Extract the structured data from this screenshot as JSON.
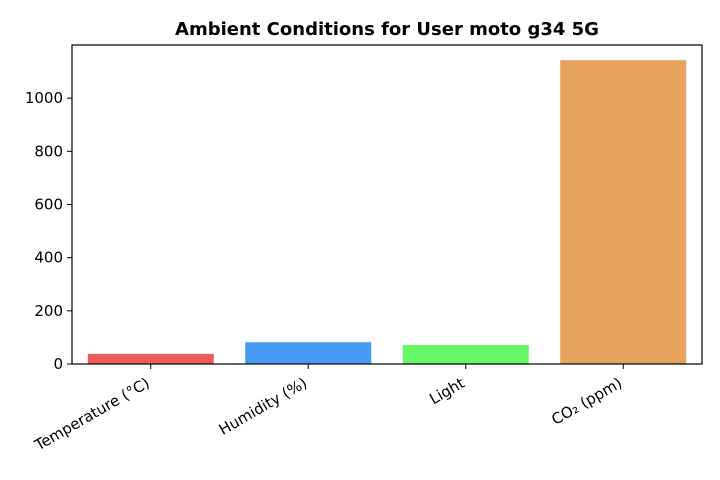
{
  "chart_data": {
    "type": "bar",
    "title": "Ambient Conditions for User moto g34 5G",
    "xlabel": "",
    "ylabel": "",
    "categories": [
      "Temperature (°C)",
      "Humidity (%)",
      "Light",
      "CO₂ (ppm)"
    ],
    "values": [
      38,
      82,
      71,
      1143
    ],
    "colors": [
      "#ee5c5c",
      "#459cf2",
      "#66f866",
      "#e6a45f"
    ],
    "yticks": [
      0,
      200,
      400,
      600,
      800,
      1000
    ],
    "ylim": [
      0,
      1200
    ],
    "grid": false,
    "legend": "none"
  }
}
